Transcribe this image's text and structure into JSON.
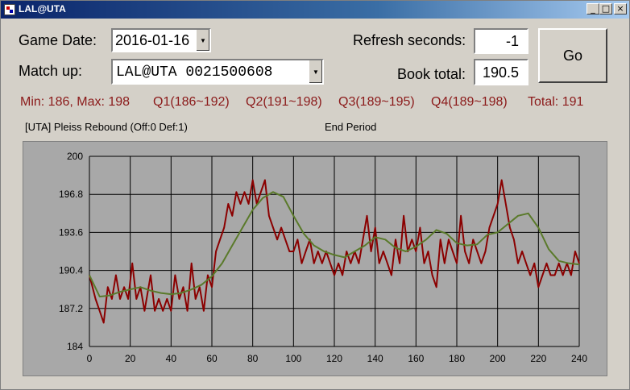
{
  "window": {
    "title": "LAL@UTA",
    "min_label": "0",
    "max_label": "1",
    "close_label": "r"
  },
  "form": {
    "game_date_label": "Game Date:",
    "game_date_value": "2016-01-16",
    "matchup_label": "Match up:",
    "matchup_value": "LAL@UTA 0021500608",
    "refresh_label": "Refresh seconds:",
    "refresh_value": "-1",
    "book_total_label": "Book total:",
    "book_total_value": "190.5",
    "go_label": "Go"
  },
  "stats": {
    "minmax": "Min: 186, Max: 198",
    "q1": "Q1(186~192)",
    "q2": "Q2(191~198)",
    "q3": "Q3(189~195)",
    "q4": "Q4(189~198)",
    "total": "Total: 191"
  },
  "status": {
    "last_play": "[UTA] Pleiss Rebound (Off:0 Def:1)",
    "period": "End Period"
  },
  "chart_data": {
    "type": "line",
    "xlim": [
      0,
      240
    ],
    "ylim": [
      184,
      200
    ],
    "xticks": [
      0,
      20,
      40,
      60,
      80,
      100,
      120,
      140,
      160,
      180,
      200,
      220,
      240
    ],
    "yticks": [
      184,
      187.2,
      190.4,
      193.6,
      196.8,
      200
    ],
    "ytick_labels": [
      "184",
      "187.2",
      "190.4",
      "193.6",
      "196.8",
      "200"
    ],
    "grid": true,
    "series": [
      {
        "color": "#8b0000",
        "x": [
          0,
          3,
          5,
          7,
          9,
          11,
          13,
          15,
          17,
          19,
          21,
          23,
          25,
          27,
          30,
          32,
          34,
          36,
          38,
          40,
          42,
          44,
          46,
          48,
          50,
          52,
          54,
          56,
          58,
          60,
          62,
          64,
          66,
          68,
          70,
          72,
          74,
          76,
          78,
          80,
          82,
          84,
          86,
          88,
          90,
          92,
          94,
          96,
          98,
          100,
          102,
          104,
          106,
          108,
          110,
          112,
          114,
          116,
          118,
          120,
          122,
          124,
          126,
          128,
          130,
          132,
          134,
          136,
          138,
          140,
          142,
          144,
          146,
          148,
          150,
          152,
          154,
          156,
          158,
          160,
          162,
          164,
          166,
          168,
          170,
          172,
          174,
          176,
          178,
          180,
          182,
          184,
          186,
          188,
          190,
          192,
          194,
          196,
          198,
          200,
          202,
          204,
          206,
          208,
          210,
          212,
          214,
          216,
          218,
          220,
          222,
          224,
          226,
          228,
          230,
          232,
          234,
          236,
          238,
          240
        ],
        "y": [
          190,
          188,
          187,
          186,
          189,
          188,
          190,
          188,
          189,
          188,
          191,
          188,
          189,
          187,
          190,
          187,
          188,
          187,
          188,
          187,
          190,
          188,
          189,
          187,
          191,
          188,
          189,
          187,
          190,
          189,
          192,
          193,
          194,
          196,
          195,
          197,
          196,
          197,
          196,
          198,
          196,
          197,
          198,
          195,
          194,
          193,
          194,
          193,
          192,
          192,
          193,
          191,
          192,
          193,
          191,
          192,
          191,
          192,
          191,
          190,
          191,
          190,
          192,
          191,
          192,
          191,
          193,
          195,
          192,
          194,
          191,
          192,
          191,
          190,
          193,
          191,
          195,
          192,
          193,
          192,
          194,
          191,
          192,
          190,
          189,
          193,
          191,
          193,
          192,
          191,
          195,
          192,
          191,
          193,
          192,
          191,
          192,
          194,
          195,
          196,
          198,
          196,
          194,
          193,
          191,
          192,
          191,
          190,
          191,
          189,
          190,
          191,
          190,
          190,
          191,
          190,
          191,
          190,
          192,
          191
        ]
      },
      {
        "color": "#5a7a2a",
        "x": [
          0,
          5,
          10,
          15,
          20,
          25,
          30,
          35,
          40,
          45,
          50,
          55,
          60,
          65,
          70,
          75,
          80,
          85,
          90,
          95,
          100,
          105,
          110,
          115,
          120,
          125,
          130,
          135,
          140,
          145,
          150,
          155,
          160,
          165,
          170,
          175,
          180,
          185,
          190,
          195,
          200,
          205,
          210,
          215,
          220,
          225,
          230,
          235,
          240
        ],
        "y": [
          190,
          188.2,
          188.3,
          188.6,
          188.8,
          189,
          188.7,
          188.5,
          188.4,
          188.5,
          188.8,
          189.2,
          189.9,
          191,
          192.5,
          194,
          195.5,
          196.5,
          197,
          196.6,
          195,
          193.5,
          192.5,
          192,
          191.7,
          191.5,
          192,
          192.5,
          193.2,
          193,
          192.3,
          192,
          192.4,
          193,
          193.8,
          193.5,
          192.7,
          192.5,
          192.6,
          193.4,
          193.6,
          194.3,
          195,
          195.2,
          194,
          192.2,
          191.2,
          191,
          190.9
        ]
      }
    ]
  }
}
